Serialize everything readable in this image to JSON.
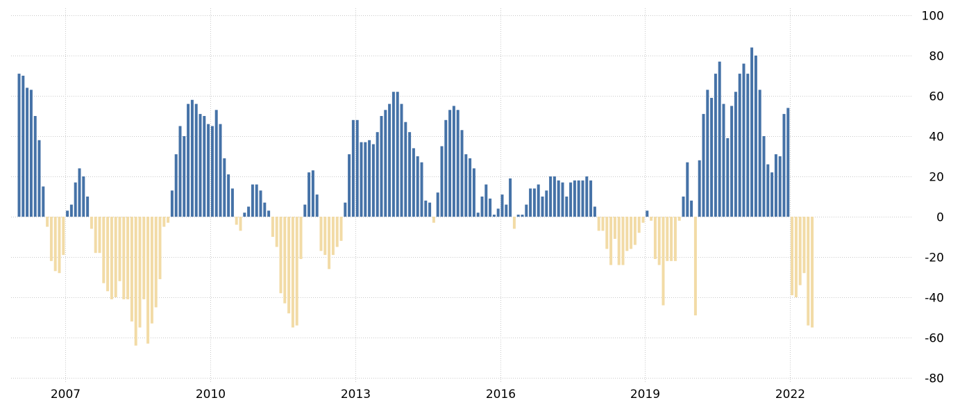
{
  "chart_data": {
    "type": "bar",
    "y_axis_side": "right",
    "ylim": [
      -80,
      100
    ],
    "y_ticks": [
      "100",
      "80",
      "60",
      "40",
      "20",
      "0",
      "-20",
      "-40",
      "-60",
      "-80"
    ],
    "x_ticks": [
      "2007",
      "2010",
      "2013",
      "2016",
      "2019",
      "2022"
    ],
    "grid": true,
    "colors": {
      "positive": "#4572a7",
      "negative": "#f2dba6",
      "grid": "#c8c8c8"
    },
    "x_start_year": 2006,
    "x_start_month": 1,
    "values": [
      71,
      70,
      64,
      63,
      50,
      38,
      15,
      -5,
      -22,
      -27,
      -28,
      -19,
      3,
      6,
      17,
      24,
      20,
      10,
      -6,
      -18,
      -18,
      -33,
      -37,
      -41,
      -40,
      -32,
      -41,
      -41,
      -52,
      -64,
      -55,
      -41,
      -63,
      -53,
      -45,
      -31,
      -5,
      -3,
      13,
      31,
      45,
      40,
      56,
      58,
      56,
      51,
      50,
      46,
      45,
      53,
      46,
      29,
      21,
      14,
      -4,
      -7,
      2,
      5,
      16,
      16,
      13,
      7,
      3,
      -10,
      -15,
      -38,
      -43,
      -48,
      -55,
      -54,
      -21,
      6,
      22,
      23,
      11,
      -17,
      -19,
      -26,
      -19,
      -15,
      -12,
      7,
      31,
      48,
      48,
      37,
      37,
      38,
      36,
      42,
      50,
      53,
      56,
      62,
      62,
      56,
      47,
      42,
      34,
      30,
      27,
      8,
      7,
      -3,
      12,
      35,
      48,
      53,
      55,
      53,
      43,
      31,
      29,
      24,
      2,
      10,
      16,
      9,
      1,
      4,
      11,
      6,
      19,
      -6,
      1,
      1,
      6,
      14,
      14,
      16,
      10,
      13,
      20,
      20,
      18,
      17,
      10,
      17,
      18,
      18,
      18,
      20,
      18,
      5,
      -7,
      -7,
      -16,
      -24,
      -11,
      -24,
      -24,
      -17,
      -16,
      -14,
      -8,
      -3,
      3,
      -2,
      -21,
      -24,
      -44,
      -22,
      -22,
      -22,
      -2,
      10,
      27,
      8,
      -49,
      28,
      51,
      63,
      59,
      71,
      77,
      56,
      39,
      55,
      62,
      71,
      76,
      71,
      84,
      80,
      63,
      40,
      26,
      22,
      31,
      30,
      51,
      54,
      -39,
      -40,
      -34,
      -28,
      -54,
      -55
    ]
  }
}
